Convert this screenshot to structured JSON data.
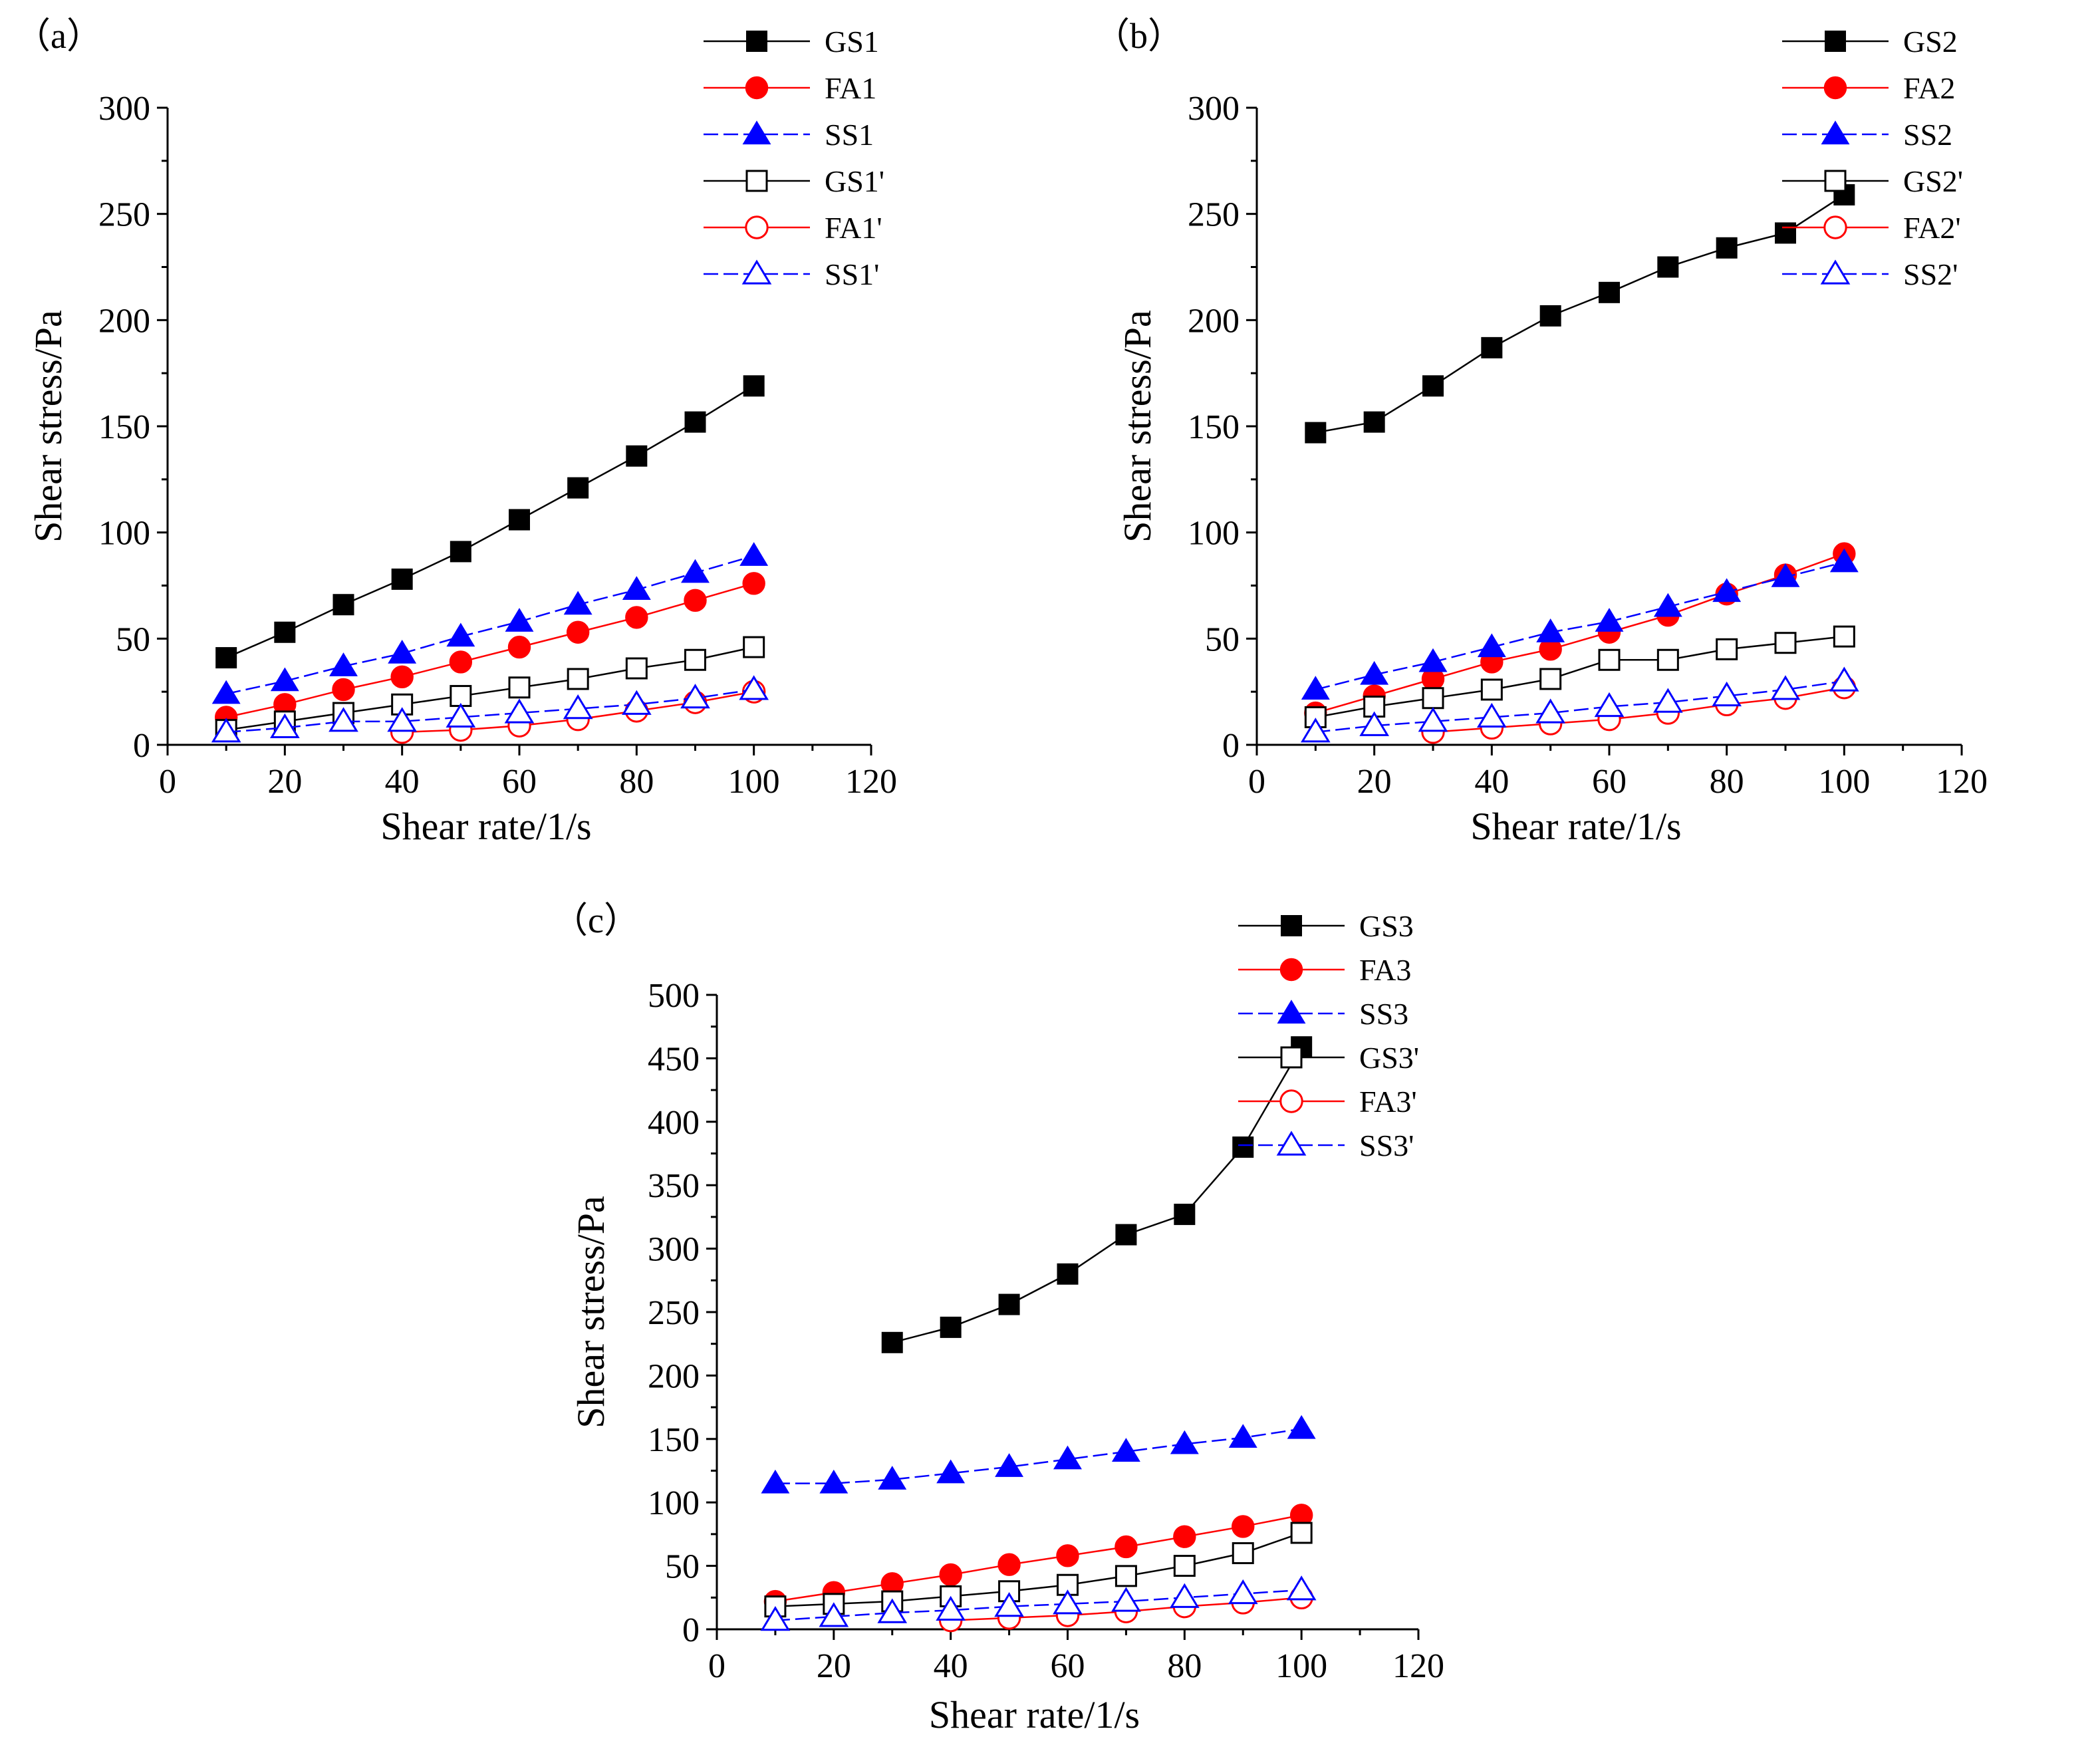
{
  "chart_data": [
    {
      "type": "line",
      "panel_label": "（a）",
      "xlabel": "Shear rate/1/s",
      "ylabel": "Shear stress/Pa",
      "xlim": [
        0,
        120
      ],
      "ylim": [
        0,
        300
      ],
      "xticks": [
        0,
        20,
        40,
        60,
        80,
        100,
        120
      ],
      "yticks": [
        0,
        50,
        100,
        150,
        200,
        250,
        300
      ],
      "grid": false,
      "legend_position": "top-right",
      "series": [
        {
          "name": "GS1",
          "color": "#000000",
          "marker": "square",
          "filled": true,
          "x": [
            10,
            20,
            30,
            40,
            50,
            60,
            70,
            80,
            90,
            100
          ],
          "y": [
            41,
            53,
            66,
            78,
            91,
            106,
            121,
            136,
            152,
            169
          ]
        },
        {
          "name": "FA1",
          "color": "#ff0000",
          "marker": "circle",
          "filled": true,
          "x": [
            10,
            20,
            30,
            40,
            50,
            60,
            70,
            80,
            90,
            100
          ],
          "y": [
            13,
            19,
            26,
            32,
            39,
            46,
            53,
            60,
            68,
            76
          ]
        },
        {
          "name": "SS1",
          "color": "#0000ff",
          "marker": "triangle",
          "filled": true,
          "x": [
            10,
            20,
            30,
            40,
            50,
            60,
            70,
            80,
            90,
            100
          ],
          "y": [
            24,
            30,
            37,
            43,
            51,
            58,
            66,
            73,
            81,
            89
          ]
        },
        {
          "name": "GS1'",
          "color": "#000000",
          "marker": "square",
          "filled": false,
          "x": [
            10,
            20,
            30,
            40,
            50,
            60,
            70,
            80,
            90,
            100
          ],
          "y": [
            7,
            11,
            15,
            19,
            23,
            27,
            31,
            36,
            40,
            46
          ]
        },
        {
          "name": "FA1'",
          "color": "#ff0000",
          "marker": "circle",
          "filled": false,
          "x": [
            40,
            50,
            60,
            70,
            80,
            90,
            100
          ],
          "y": [
            6,
            7,
            9,
            12,
            16,
            20,
            25
          ]
        },
        {
          "name": "SS1'",
          "color": "#0000ff",
          "marker": "triangle",
          "filled": false,
          "x": [
            10,
            20,
            30,
            40,
            50,
            60,
            70,
            80,
            90,
            100
          ],
          "y": [
            6,
            8,
            11,
            11,
            13,
            15,
            17,
            19,
            22,
            26
          ]
        }
      ]
    },
    {
      "type": "line",
      "panel_label": "（b）",
      "xlabel": "Shear rate/1/s",
      "ylabel": "Shear stress/Pa",
      "xlim": [
        0,
        120
      ],
      "ylim": [
        0,
        300
      ],
      "xticks": [
        0,
        20,
        40,
        60,
        80,
        100,
        120
      ],
      "yticks": [
        0,
        50,
        100,
        150,
        200,
        250,
        300
      ],
      "grid": false,
      "legend_position": "top-right",
      "series": [
        {
          "name": "GS2",
          "color": "#000000",
          "marker": "square",
          "filled": true,
          "x": [
            10,
            20,
            30,
            40,
            50,
            60,
            70,
            80,
            90,
            100
          ],
          "y": [
            147,
            152,
            169,
            187,
            202,
            213,
            225,
            234,
            241,
            259
          ]
        },
        {
          "name": "FA2",
          "color": "#ff0000",
          "marker": "circle",
          "filled": true,
          "x": [
            10,
            20,
            30,
            40,
            50,
            60,
            70,
            80,
            90,
            100
          ],
          "y": [
            15,
            23,
            31,
            39,
            45,
            53,
            61,
            71,
            80,
            90
          ]
        },
        {
          "name": "SS2",
          "color": "#0000ff",
          "marker": "triangle",
          "filled": true,
          "x": [
            10,
            20,
            30,
            40,
            50,
            60,
            70,
            80,
            90,
            100
          ],
          "y": [
            26,
            33,
            39,
            46,
            53,
            58,
            65,
            72,
            79,
            86
          ]
        },
        {
          "name": "GS2'",
          "color": "#000000",
          "marker": "square",
          "filled": false,
          "x": [
            10,
            20,
            30,
            40,
            50,
            60,
            70,
            80,
            90,
            100
          ],
          "y": [
            13,
            18,
            22,
            26,
            31,
            40,
            40,
            45,
            48,
            51
          ]
        },
        {
          "name": "FA2'",
          "color": "#ff0000",
          "marker": "circle",
          "filled": false,
          "x": [
            30,
            40,
            50,
            60,
            70,
            80,
            90,
            100
          ],
          "y": [
            6,
            8,
            10,
            12,
            15,
            19,
            22,
            27
          ]
        },
        {
          "name": "SS2'",
          "color": "#0000ff",
          "marker": "triangle",
          "filled": false,
          "x": [
            10,
            20,
            30,
            40,
            50,
            60,
            70,
            80,
            90,
            100
          ],
          "y": [
            6,
            9,
            11,
            13,
            15,
            18,
            20,
            23,
            26,
            30
          ]
        }
      ]
    },
    {
      "type": "line",
      "panel_label": "（c）",
      "xlabel": "Shear rate/1/s",
      "ylabel": "Shear stress/Pa",
      "xlim": [
        0,
        120
      ],
      "ylim": [
        0,
        500
      ],
      "xticks": [
        0,
        20,
        40,
        60,
        80,
        100,
        120
      ],
      "yticks": [
        0,
        50,
        100,
        150,
        200,
        250,
        300,
        350,
        400,
        450,
        500
      ],
      "grid": false,
      "legend_position": "top-right",
      "series": [
        {
          "name": "GS3",
          "color": "#000000",
          "marker": "square",
          "filled": true,
          "x": [
            30,
            40,
            50,
            60,
            70,
            80,
            90,
            100
          ],
          "y": [
            226,
            238,
            256,
            280,
            311,
            327,
            380,
            459
          ]
        },
        {
          "name": "FA3",
          "color": "#ff0000",
          "marker": "circle",
          "filled": true,
          "x": [
            10,
            20,
            30,
            40,
            50,
            60,
            70,
            80,
            90,
            100
          ],
          "y": [
            22,
            29,
            36,
            43,
            51,
            58,
            65,
            73,
            81,
            90
          ]
        },
        {
          "name": "SS3",
          "color": "#0000ff",
          "marker": "triangle",
          "filled": true,
          "x": [
            10,
            20,
            30,
            40,
            50,
            60,
            70,
            80,
            90,
            100
          ],
          "y": [
            115,
            115,
            118,
            123,
            128,
            134,
            140,
            146,
            151,
            158
          ]
        },
        {
          "name": "GS3'",
          "color": "#000000",
          "marker": "square",
          "filled": false,
          "x": [
            10,
            20,
            30,
            40,
            50,
            60,
            70,
            80,
            90,
            100
          ],
          "y": [
            18,
            20,
            22,
            26,
            30,
            35,
            42,
            50,
            60,
            76
          ]
        },
        {
          "name": "FA3'",
          "color": "#ff0000",
          "marker": "circle",
          "filled": false,
          "x": [
            40,
            50,
            60,
            70,
            80,
            90,
            100
          ],
          "y": [
            7,
            9,
            11,
            14,
            18,
            21,
            25
          ]
        },
        {
          "name": "SS3'",
          "color": "#0000ff",
          "marker": "triangle",
          "filled": false,
          "x": [
            10,
            20,
            30,
            40,
            50,
            60,
            70,
            80,
            90,
            100
          ],
          "y": [
            7,
            10,
            13,
            15,
            18,
            20,
            22,
            25,
            28,
            31
          ]
        }
      ]
    }
  ]
}
